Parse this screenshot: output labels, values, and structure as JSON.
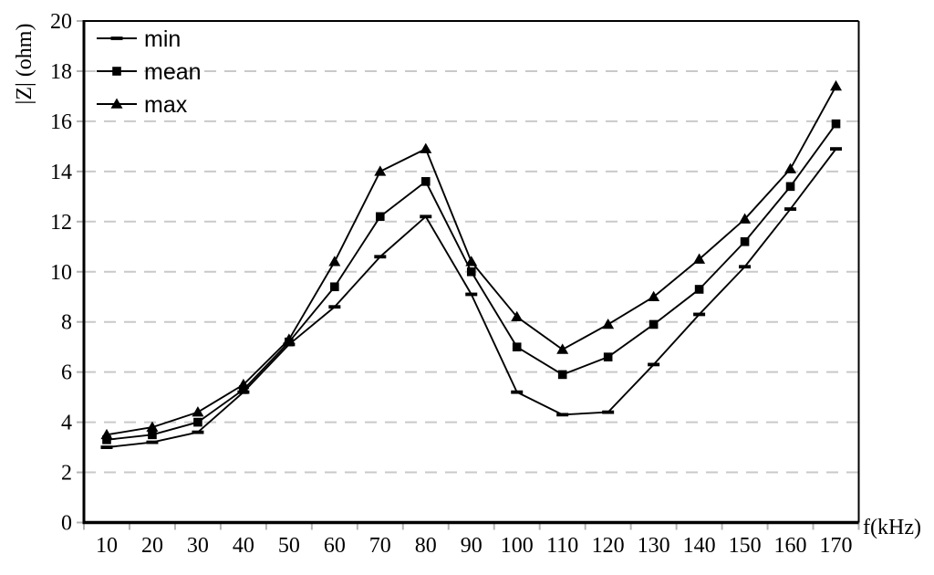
{
  "chart_data": {
    "type": "line",
    "title": "",
    "xlabel": "f(kHz)",
    "ylabel": "|Z| (ohm)",
    "x": [
      10,
      20,
      30,
      40,
      50,
      60,
      70,
      80,
      90,
      100,
      110,
      120,
      130,
      140,
      150,
      160,
      170
    ],
    "yticks": [
      0,
      2,
      4,
      6,
      8,
      10,
      12,
      14,
      16,
      18,
      20
    ],
    "ylim": [
      0,
      20
    ],
    "grid": "horizontal-dashed",
    "legend_position": "top-left-inside",
    "series": [
      {
        "name": "min",
        "marker": "dash",
        "color": "#000000",
        "values": [
          3.0,
          3.2,
          3.6,
          5.2,
          7.1,
          8.6,
          10.6,
          12.2,
          9.1,
          5.2,
          4.3,
          4.4,
          6.3,
          8.3,
          10.2,
          12.5,
          14.9
        ]
      },
      {
        "name": "mean",
        "marker": "square",
        "color": "#000000",
        "values": [
          3.3,
          3.5,
          4.0,
          5.3,
          7.2,
          9.4,
          12.2,
          13.6,
          10.0,
          7.0,
          5.9,
          6.6,
          7.9,
          9.3,
          11.2,
          13.4,
          15.9
        ]
      },
      {
        "name": "max",
        "marker": "triangle",
        "color": "#000000",
        "values": [
          3.5,
          3.8,
          4.4,
          5.5,
          7.3,
          10.4,
          14.0,
          14.9,
          10.4,
          8.2,
          6.9,
          7.9,
          9.0,
          10.5,
          12.1,
          14.1,
          17.4
        ]
      }
    ]
  },
  "colors": {
    "line": "#000000",
    "gridline": "#c9c9c9",
    "tick": "#b3b3b3",
    "axis": "#000000",
    "text": "#000000",
    "background": "#ffffff"
  }
}
